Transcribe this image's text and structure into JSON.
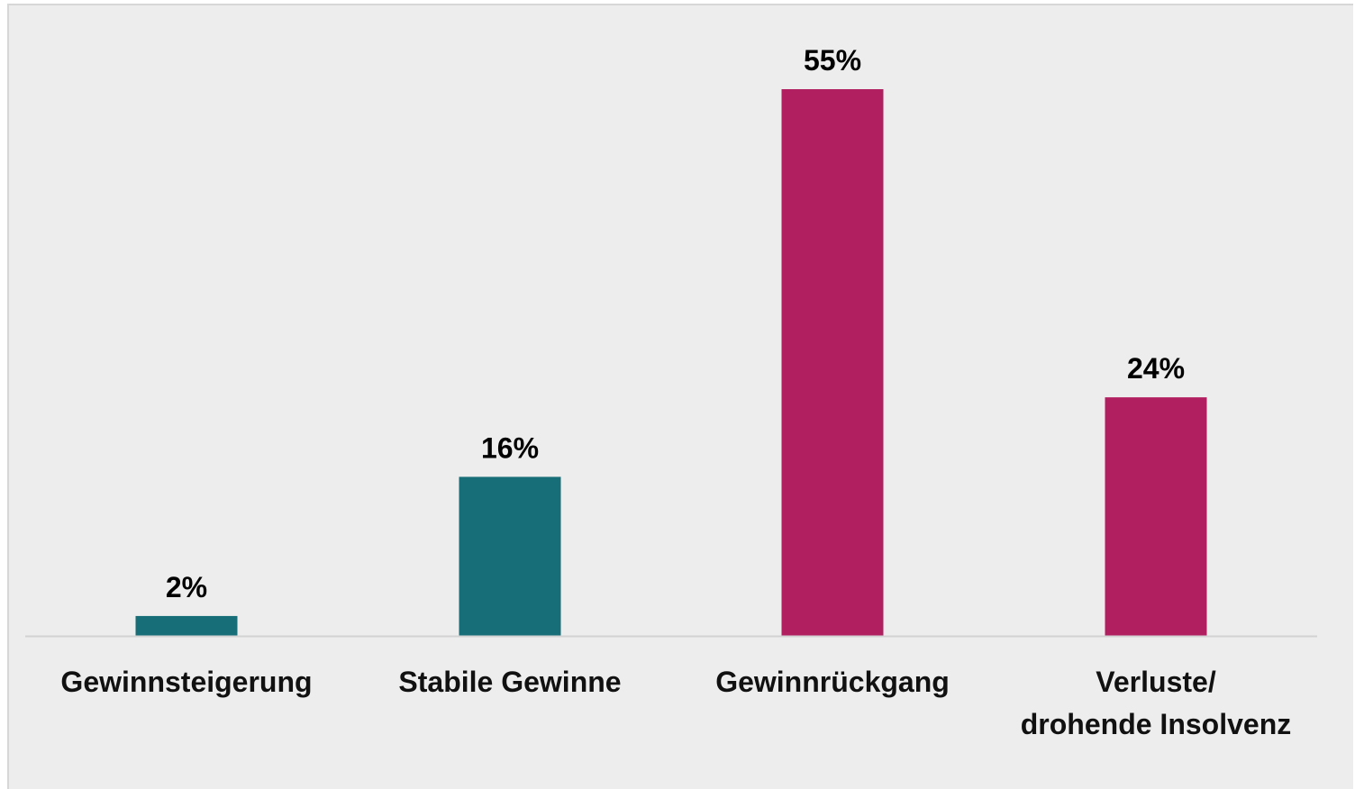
{
  "chart_data": {
    "type": "bar",
    "title": "",
    "xlabel": "",
    "ylabel": "",
    "categories": [
      [
        "Gewinnsteigerung"
      ],
      [
        "Stabile Gewinne"
      ],
      [
        "Gewinnrückgang"
      ],
      [
        "Verluste/",
        "drohende Insolvenz"
      ]
    ],
    "values": [
      2,
      16,
      55,
      24
    ],
    "value_labels": [
      "2%",
      "16%",
      "55%",
      "24%"
    ],
    "colors": [
      "#186e78",
      "#186e78",
      "#b21f61",
      "#b21f61"
    ],
    "ylim": [
      0,
      55
    ],
    "grid": false,
    "legend": "none"
  },
  "colors": {
    "panel_background": "#ededed",
    "baseline": "#d2d2d2"
  }
}
